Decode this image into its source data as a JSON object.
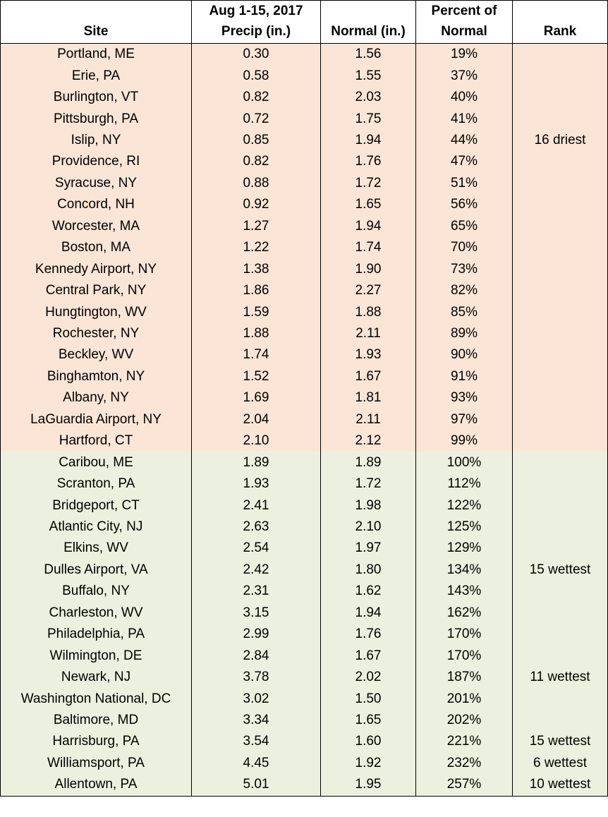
{
  "table": {
    "header": [
      [
        "Site"
      ],
      [
        "Aug 1-15, 2017",
        "Precip (in.)"
      ],
      [
        "Normal (in.)"
      ],
      [
        "Percent of",
        "Normal"
      ],
      [
        "Rank"
      ]
    ],
    "row_groups": [
      {
        "color": "#fbe5d6",
        "rows": [
          [
            "Portland, ME",
            "0.30",
            "1.56",
            "19%",
            null
          ],
          [
            "Erie, PA",
            "0.58",
            "1.55",
            "37%",
            null
          ],
          [
            "Burlington, VT",
            "0.82",
            "2.03",
            "40%",
            null
          ],
          [
            "Pittsburgh, PA",
            "0.72",
            "1.75",
            "41%",
            null
          ],
          [
            "Islip, NY",
            "0.85",
            "1.94",
            "44%",
            "16 driest"
          ],
          [
            "Providence, RI",
            "0.82",
            "1.76",
            "47%",
            null
          ],
          [
            "Syracuse, NY",
            "0.88",
            "1.72",
            "51%",
            null
          ],
          [
            "Concord, NH",
            "0.92",
            "1.65",
            "56%",
            null
          ],
          [
            "Worcester, MA",
            "1.27",
            "1.94",
            "65%",
            null
          ],
          [
            "Boston, MA",
            "1.22",
            "1.74",
            "70%",
            null
          ],
          [
            "Kennedy Airport, NY",
            "1.38",
            "1.90",
            "73%",
            null
          ],
          [
            "Central Park, NY",
            "1.86",
            "2.27",
            "82%",
            null
          ],
          [
            "Hungtington, WV",
            "1.59",
            "1.88",
            "85%",
            null
          ],
          [
            "Rochester, NY",
            "1.88",
            "2.11",
            "89%",
            null
          ],
          [
            "Beckley, WV",
            "1.74",
            "1.93",
            "90%",
            null
          ],
          [
            "Binghamton, NY",
            "1.52",
            "1.67",
            "91%",
            null
          ],
          [
            "Albany, NY",
            "1.69",
            "1.81",
            "93%",
            null
          ],
          [
            "LaGuardia Airport, NY",
            "2.04",
            "2.11",
            "97%",
            null
          ],
          [
            "Hartford, CT",
            "2.10",
            "2.12",
            "99%",
            null
          ]
        ]
      },
      {
        "color": "#ebf1de",
        "rows": [
          [
            "Caribou, ME",
            "1.89",
            "1.89",
            "100%",
            null
          ],
          [
            "Scranton, PA",
            "1.93",
            "1.72",
            "112%",
            null
          ],
          [
            "Bridgeport, CT",
            "2.41",
            "1.98",
            "122%",
            null
          ],
          [
            "Atlantic City, NJ",
            "2.63",
            "2.10",
            "125%",
            null
          ],
          [
            "Elkins, WV",
            "2.54",
            "1.97",
            "129%",
            null
          ],
          [
            "Dulles Airport, VA",
            "2.42",
            "1.80",
            "134%",
            "15 wettest"
          ],
          [
            "Buffalo, NY",
            "2.31",
            "1.62",
            "143%",
            null
          ],
          [
            "Charleston, WV",
            "3.15",
            "1.94",
            "162%",
            null
          ],
          [
            "Philadelphia, PA",
            "2.99",
            "1.76",
            "170%",
            null
          ],
          [
            "Wilmington, DE",
            "2.84",
            "1.67",
            "170%",
            null
          ],
          [
            "Newark, NJ",
            "3.78",
            "2.02",
            "187%",
            "11 wettest"
          ],
          [
            "Washington National, DC",
            "3.02",
            "1.50",
            "201%",
            null
          ],
          [
            "Baltimore, MD",
            "3.34",
            "1.65",
            "202%",
            null
          ],
          [
            "Harrisburg, PA",
            "3.54",
            "1.60",
            "221%",
            "15 wettest"
          ],
          [
            "Williamsport, PA",
            "4.45",
            "1.92",
            "232%",
            "6 wettest"
          ],
          [
            "Allentown, PA",
            "5.01",
            "1.95",
            "257%",
            "10 wettest"
          ]
        ]
      }
    ]
  }
}
